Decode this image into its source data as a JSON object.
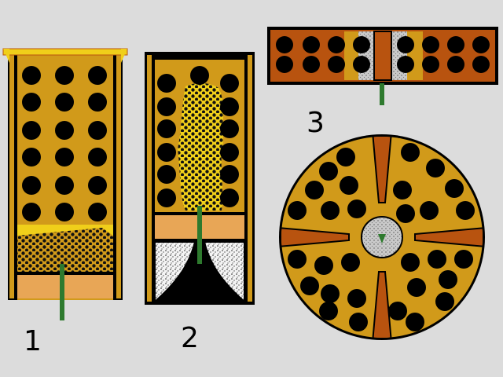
{
  "labels": {
    "one": "1",
    "two": "2",
    "three": "3"
  },
  "colors": {
    "background": "#dcdcdc",
    "orange": "#d19a1a",
    "dark_orange": "#b8530f",
    "tan": "#e8a656",
    "yellow": "#f0cf1a",
    "hole": "#000000",
    "fuse": "#2e7a2e",
    "grey_powder": "#c9c9c9"
  }
}
